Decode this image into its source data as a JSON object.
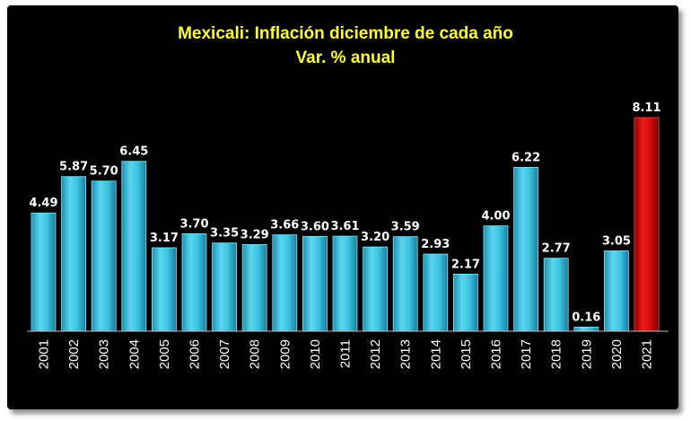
{
  "chart_data": {
    "type": "bar",
    "title": "Mexicali: Inflación diciembre de cada año",
    "subtitle": "Var. % anual",
    "categories": [
      "2001",
      "2002",
      "2003",
      "2004",
      "2005",
      "2006",
      "2007",
      "2008",
      "2009",
      "2010",
      "2011",
      "2012",
      "2013",
      "2014",
      "2015",
      "2016",
      "2017",
      "2018",
      "2019",
      "2020",
      "2021"
    ],
    "values": [
      4.49,
      5.87,
      5.7,
      6.45,
      3.17,
      3.7,
      3.35,
      3.29,
      3.66,
      3.6,
      3.61,
      3.2,
      3.59,
      2.93,
      2.17,
      4.0,
      6.22,
      2.77,
      0.16,
      3.05,
      8.11
    ],
    "value_labels": [
      "4.49",
      "5.87",
      "5.70",
      "6.45",
      "3.17",
      "3.70",
      "3.35",
      "3.29",
      "3.66",
      "3.60",
      "3.61",
      "3.20",
      "3.59",
      "2.93",
      "2.17",
      "4.00",
      "6.22",
      "2.77",
      "0.16",
      "3.05",
      "8.11"
    ],
    "ylim": [
      0,
      8.11
    ],
    "grid": false,
    "colors": {
      "default": "#3cc3e0",
      "highlight": "#d40a0a",
      "background": "#000000",
      "title": "#ffff33"
    },
    "highlight_category": "2021"
  }
}
